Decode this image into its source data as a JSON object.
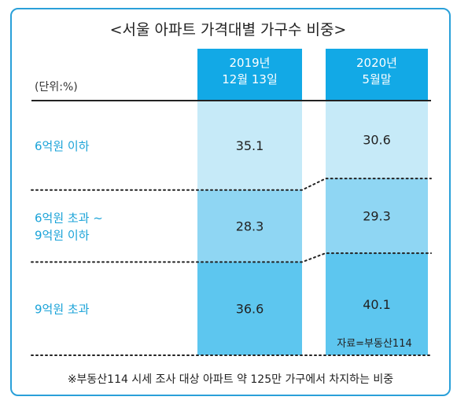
{
  "title": "<서울 아파트 가격대별 가구수 비중>",
  "unit": "(단위:%)",
  "note": "※부동산114 시세 조사 대상 아파트 약 125만 가구에서 차지하는 비중",
  "source": "자료=부동산114",
  "colors": {
    "border": "#2aa0d9",
    "header": "#12a9e6",
    "band_low": "#c6eaf8",
    "band_mid": "#8fd6f3",
    "band_high": "#5dc6ef",
    "category_text": "#1aa3d8"
  },
  "chart_data": {
    "type": "bar",
    "orientation": "stacked-column",
    "categories": [
      "2019년 12월 13일",
      "2020년 5월말"
    ],
    "column_headers": [
      [
        "2019년",
        "12월 13일"
      ],
      [
        "2020년",
        "5월말"
      ]
    ],
    "series": [
      {
        "name": "6억원 이하",
        "label_lines": [
          "6억원 이하"
        ],
        "values": [
          35.1,
          30.6
        ]
      },
      {
        "name": "6억원 초과 ~ 9억원 이하",
        "label_lines": [
          "6억원 초과 ~",
          "9억원 이하"
        ],
        "values": [
          28.3,
          29.3
        ]
      },
      {
        "name": "9억원 초과",
        "label_lines": [
          "9억원 초과"
        ],
        "values": [
          36.6,
          40.1
        ]
      }
    ],
    "value_labels": [
      [
        "35.1",
        "30.6"
      ],
      [
        "28.3",
        "29.3"
      ],
      [
        "36.6",
        "40.1"
      ]
    ],
    "ylabel": "",
    "ylim": [
      0,
      100
    ],
    "legend": "left"
  }
}
